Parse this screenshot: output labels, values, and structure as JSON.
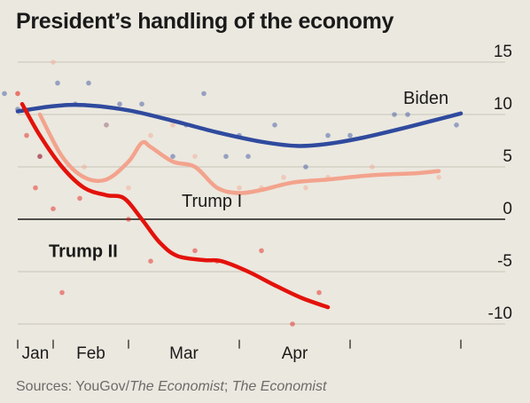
{
  "chart_data": {
    "type": "line",
    "title": "President’s handling of the economy",
    "subtitle": "",
    "xlabel": "",
    "ylabel": "",
    "source": {
      "prefix": "Sources: YouGov/",
      "italic1": "The Economist",
      "middle": "; ",
      "italic2": "The Economist"
    },
    "xlim": [
      0,
      100
    ],
    "ylim": [
      -11.5,
      16
    ],
    "x_ticks": [
      0,
      8,
      25,
      50,
      75,
      100
    ],
    "x_tick_labels": [
      {
        "label": "Jan",
        "x": 4
      },
      {
        "label": "Feb",
        "x": 16.5
      },
      {
        "label": "Mar",
        "x": 37.5
      },
      {
        "label": "Apr",
        "x": 62.5
      }
    ],
    "y_ticks": [
      15,
      10,
      5,
      0,
      -5,
      -10
    ],
    "y_tick_labels": [
      "15",
      "10",
      "5",
      "0",
      "-5",
      "-10"
    ],
    "grid": true,
    "series": [
      {
        "name": "Biden",
        "color": "#2f4a9e",
        "label_pos": {
          "x": 87,
          "y": 11
        },
        "label_bold": false,
        "line": [
          [
            0,
            10.3
          ],
          [
            8,
            10.8
          ],
          [
            15,
            10.9
          ],
          [
            25,
            10.4
          ],
          [
            35,
            9.4
          ],
          [
            45,
            8.3
          ],
          [
            55,
            7.4
          ],
          [
            63,
            7.0
          ],
          [
            70,
            7.2
          ],
          [
            78,
            7.8
          ],
          [
            88,
            8.8
          ],
          [
            100,
            10.1
          ]
        ],
        "points": [
          [
            -3,
            12
          ],
          [
            0,
            10.5
          ],
          [
            5,
            6
          ],
          [
            9,
            13
          ],
          [
            13,
            11
          ],
          [
            16,
            13
          ],
          [
            20,
            9
          ],
          [
            23,
            11
          ],
          [
            28,
            11
          ],
          [
            35,
            6
          ],
          [
            38,
            9
          ],
          [
            42,
            12
          ],
          [
            47,
            6
          ],
          [
            50,
            8
          ],
          [
            52,
            6
          ],
          [
            58,
            9
          ],
          [
            65,
            5
          ],
          [
            70,
            8
          ],
          [
            75,
            8
          ],
          [
            85,
            10
          ],
          [
            88,
            10
          ],
          [
            99,
            9
          ]
        ]
      },
      {
        "name": "Trump I",
        "color": "#f3a38d",
        "label_pos": {
          "x": 37,
          "y": 1.2
        },
        "label_bold": false,
        "line": [
          [
            5,
            10
          ],
          [
            10,
            6
          ],
          [
            15,
            4
          ],
          [
            20,
            3.8
          ],
          [
            25,
            5.5
          ],
          [
            28,
            7.3
          ],
          [
            30,
            6.9
          ],
          [
            35,
            5.5
          ],
          [
            40,
            5
          ],
          [
            45,
            3
          ],
          [
            50,
            2.5
          ],
          [
            55,
            2.8
          ],
          [
            62,
            3.5
          ],
          [
            70,
            3.8
          ],
          [
            80,
            4.2
          ],
          [
            90,
            4.4
          ],
          [
            95,
            4.6
          ]
        ],
        "points": [
          [
            0,
            12
          ],
          [
            8,
            15
          ],
          [
            15,
            5
          ],
          [
            20,
            9
          ],
          [
            25,
            3
          ],
          [
            30,
            8
          ],
          [
            35,
            9
          ],
          [
            40,
            6
          ],
          [
            50,
            3
          ],
          [
            55,
            3
          ],
          [
            60,
            4
          ],
          [
            65,
            3
          ],
          [
            70,
            4
          ],
          [
            80,
            5
          ],
          [
            95,
            4
          ]
        ]
      },
      {
        "name": "Trump II",
        "color": "#e3120b",
        "label_pos": {
          "x": 7,
          "y": -3.6
        },
        "label_bold": true,
        "line": [
          [
            1,
            11
          ],
          [
            5,
            8
          ],
          [
            10,
            5
          ],
          [
            15,
            3
          ],
          [
            20,
            2.3
          ],
          [
            24,
            2
          ],
          [
            28,
            0
          ],
          [
            32,
            -2.2
          ],
          [
            36,
            -3.5
          ],
          [
            42,
            -3.9
          ],
          [
            46,
            -4
          ],
          [
            52,
            -5
          ],
          [
            58,
            -6.3
          ],
          [
            64,
            -7.5
          ],
          [
            70,
            -8.4
          ]
        ],
        "points": [
          [
            0,
            12
          ],
          [
            2,
            8
          ],
          [
            4,
            3
          ],
          [
            5,
            6
          ],
          [
            8,
            1
          ],
          [
            10,
            -7
          ],
          [
            14,
            2
          ],
          [
            25,
            0
          ],
          [
            30,
            -4
          ],
          [
            40,
            -3
          ],
          [
            45,
            -4
          ],
          [
            55,
            -3
          ],
          [
            62,
            -10
          ],
          [
            68,
            -7
          ]
        ]
      }
    ]
  }
}
